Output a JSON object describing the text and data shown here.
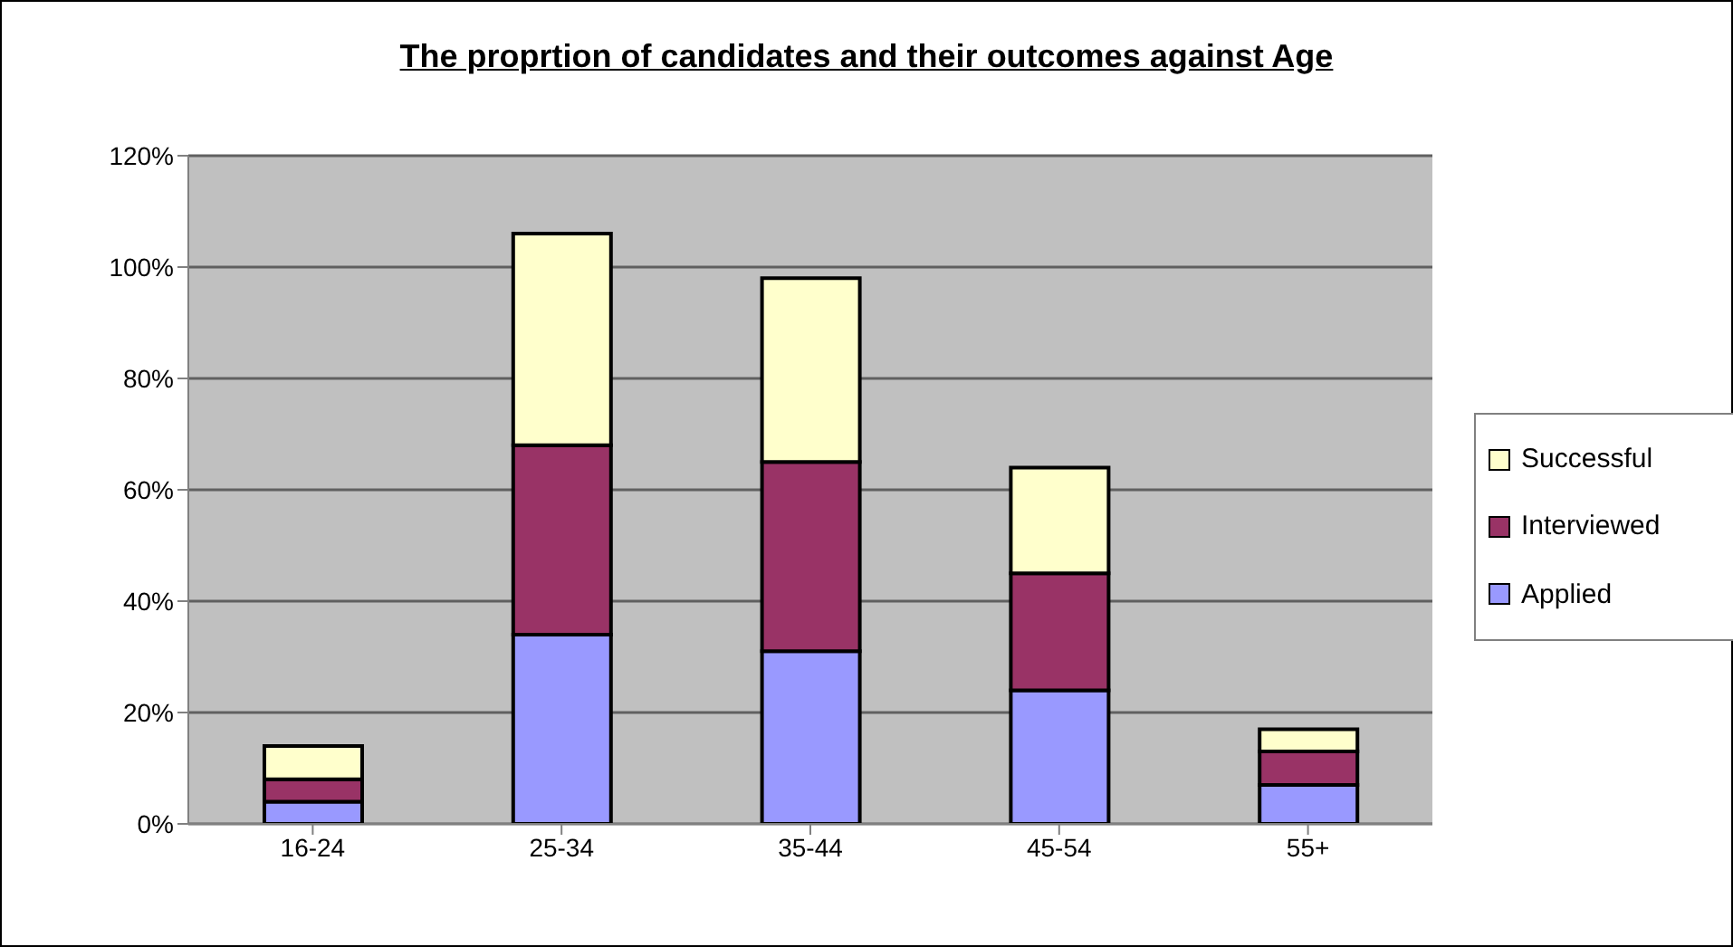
{
  "chart_data": {
    "type": "bar",
    "title": "The proprtion of candidates and their outcomes against Age",
    "categories": [
      "16-24",
      "25-34",
      "35-44",
      "45-54",
      "55+"
    ],
    "stacked": true,
    "series": [
      {
        "name": "Applied",
        "color": "#9999ff",
        "values": [
          4,
          34,
          31,
          24,
          7
        ]
      },
      {
        "name": "Interviewed",
        "color": "#993366",
        "values": [
          4,
          34,
          34,
          21,
          6
        ]
      },
      {
        "name": "Successful",
        "color": "#ffffcc",
        "values": [
          6,
          38,
          33,
          19,
          4
        ]
      }
    ],
    "ylim": [
      0,
      120
    ],
    "yticks": [
      {
        "value": 0,
        "label": "0%"
      },
      {
        "value": 20,
        "label": "20%"
      },
      {
        "value": 40,
        "label": "40%"
      },
      {
        "value": 60,
        "label": "60%"
      },
      {
        "value": 80,
        "label": "80%"
      },
      {
        "value": 100,
        "label": "100%"
      },
      {
        "value": 120,
        "label": "120%"
      }
    ],
    "grid": "y",
    "legend": "right"
  }
}
